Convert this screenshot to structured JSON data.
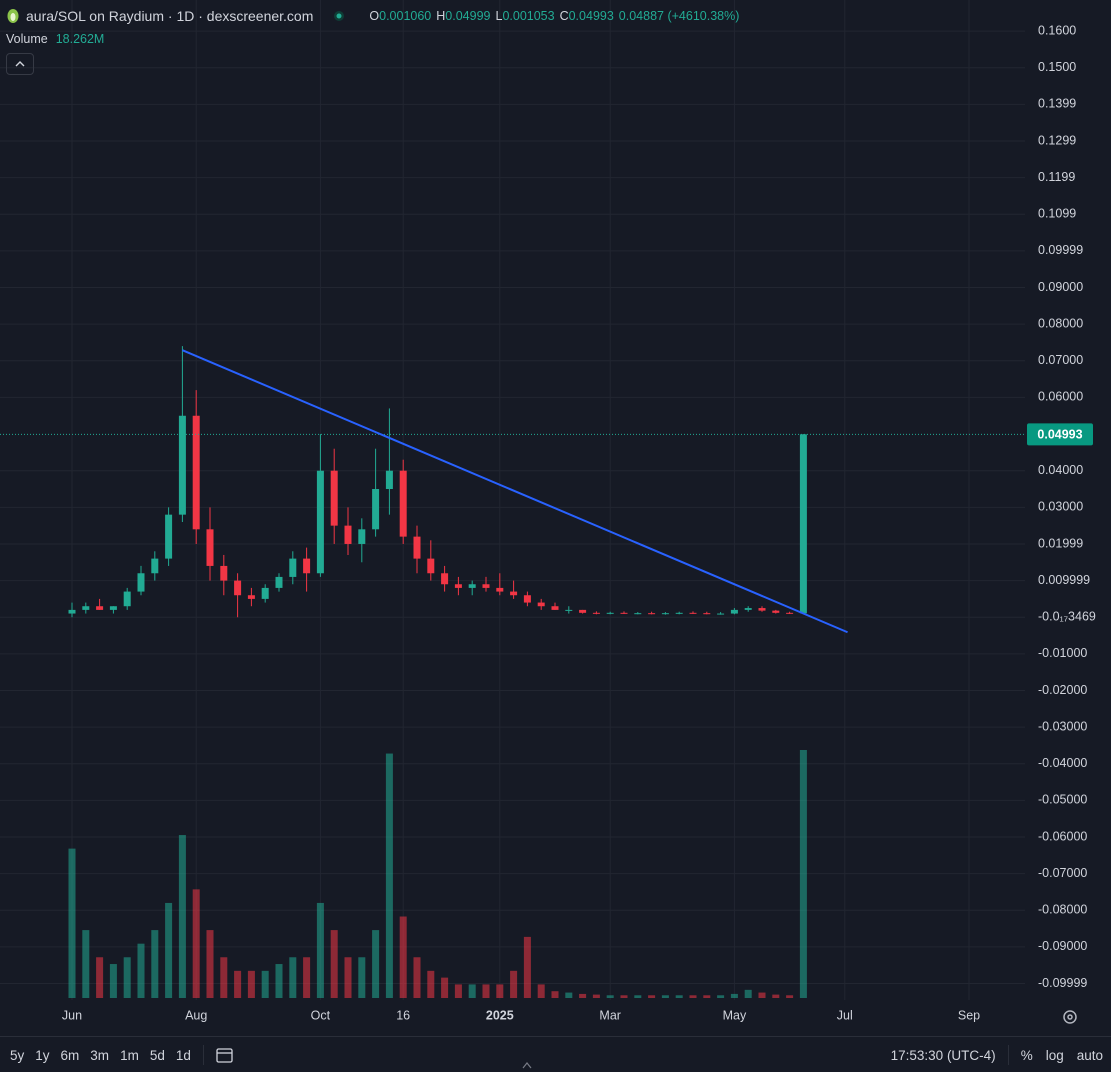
{
  "chart_data": {
    "type": "candlestick",
    "title": "aura/SOL on Raydium · 1D · dexscreener.com",
    "legend": [
      {
        "key": "O",
        "value": "0.001060"
      },
      {
        "key": "H",
        "value": "0.04999"
      },
      {
        "key": "L",
        "value": "0.001053"
      },
      {
        "key": "C",
        "value": "0.04993"
      }
    ],
    "change": "0.04887 (+4610.38%)",
    "volume_title": "Volume",
    "volume_value_label": "18.262M",
    "categories": [
      "Jun",
      null,
      null,
      null,
      null,
      null,
      null,
      null,
      null,
      "Aug",
      null,
      null,
      null,
      null,
      null,
      null,
      null,
      null,
      "Oct",
      null,
      null,
      null,
      null,
      null,
      "16",
      null,
      null,
      null,
      null,
      null,
      null,
      "2025",
      null,
      null,
      null,
      null,
      null,
      null,
      null,
      "Mar",
      null,
      null,
      null,
      null,
      null,
      null,
      null,
      null,
      "May",
      null,
      null,
      null,
      null,
      null,
      null,
      null,
      "Jul",
      null,
      null,
      null,
      null,
      null,
      null,
      null,
      null,
      "Sep",
      null,
      null,
      null
    ],
    "open": [
      0.001,
      0.002,
      0.003,
      0.002,
      0.003,
      0.007,
      0.012,
      0.016,
      0.028,
      0.055,
      0.024,
      0.014,
      0.01,
      0.006,
      0.005,
      0.008,
      0.011,
      0.016,
      0.012,
      0.04,
      0.025,
      0.02,
      0.024,
      0.035,
      0.04,
      0.022,
      0.016,
      0.012,
      0.009,
      0.008,
      0.009,
      0.008,
      0.007,
      0.006,
      0.004,
      0.003,
      0.002,
      0.002,
      0.0012,
      0.0011,
      0.0012,
      0.001,
      0.0011,
      0.001,
      0.0011,
      0.0012,
      0.0011,
      0.001,
      0.001,
      0.002,
      0.0025,
      0.0018,
      0.0012,
      0.00106,
      null,
      null,
      null,
      null,
      null,
      null,
      null,
      null,
      null,
      null,
      null,
      null,
      null,
      null,
      null
    ],
    "high": [
      0.004,
      0.004,
      0.005,
      0.003,
      0.008,
      0.014,
      0.018,
      0.03,
      0.074,
      0.062,
      0.03,
      0.017,
      0.012,
      0.008,
      0.009,
      0.012,
      0.018,
      0.019,
      0.05,
      0.046,
      0.03,
      0.027,
      0.046,
      0.057,
      0.043,
      0.025,
      0.021,
      0.014,
      0.011,
      0.01,
      0.011,
      0.012,
      0.01,
      0.007,
      0.005,
      0.004,
      0.003,
      0.002,
      0.0016,
      0.0015,
      0.0016,
      0.0014,
      0.0015,
      0.0014,
      0.0015,
      0.0016,
      0.0015,
      0.0014,
      0.0025,
      0.003,
      0.003,
      0.002,
      0.0015,
      0.04999,
      null,
      null,
      null,
      null,
      null,
      null,
      null,
      null,
      null,
      null,
      null,
      null,
      null,
      null,
      null
    ],
    "low": [
      0,
      0.001,
      0.002,
      0.001,
      0.002,
      0.006,
      0.01,
      0.014,
      0.026,
      0.02,
      0.01,
      0.006,
      0,
      0.003,
      0.004,
      0.007,
      0.009,
      0.007,
      0.011,
      0.02,
      0.017,
      0.015,
      0.022,
      0.028,
      0.02,
      0.012,
      0.01,
      0.007,
      0.006,
      0.006,
      0.007,
      0.006,
      0.005,
      0.003,
      0.002,
      0.002,
      0.001,
      0.001,
      0.0008,
      0.0008,
      0.0009,
      0.0008,
      0.0008,
      0.0007,
      0.0008,
      0.0009,
      0.0008,
      0.0007,
      0.0008,
      0.0015,
      0.0015,
      0.001,
      0.0009,
      0.001053,
      null,
      null,
      null,
      null,
      null,
      null,
      null,
      null,
      null,
      null,
      null,
      null,
      null,
      null,
      null
    ],
    "close": [
      0.002,
      0.003,
      0.002,
      0.003,
      0.007,
      0.012,
      0.016,
      0.028,
      0.055,
      0.024,
      0.014,
      0.01,
      0.006,
      0.005,
      0.008,
      0.011,
      0.016,
      0.012,
      0.04,
      0.025,
      0.02,
      0.024,
      0.035,
      0.04,
      0.022,
      0.016,
      0.012,
      0.009,
      0.008,
      0.009,
      0.008,
      0.007,
      0.006,
      0.004,
      0.003,
      0.002,
      0.002,
      0.0012,
      0.0011,
      0.0012,
      0.001,
      0.0011,
      0.001,
      0.0011,
      0.0012,
      0.0011,
      0.001,
      0.001,
      0.002,
      0.0025,
      0.0018,
      0.0012,
      0.0011,
      0.04993,
      null,
      null,
      null,
      null,
      null,
      null,
      null,
      null,
      null,
      null,
      null,
      null,
      null,
      null,
      null
    ],
    "volume": [
      11000000,
      5000000,
      3000000,
      2500000,
      3000000,
      4000000,
      5000000,
      7000000,
      12000000,
      8000000,
      5000000,
      3000000,
      2000000,
      2000000,
      2000000,
      2500000,
      3000000,
      3000000,
      7000000,
      5000000,
      3000000,
      3000000,
      5000000,
      18000000,
      6000000,
      3000000,
      2000000,
      1500000,
      1000000,
      1000000,
      1000000,
      1000000,
      2000000,
      4500000,
      1000000,
      500000,
      400000,
      300000,
      250000,
      200000,
      200000,
      200000,
      200000,
      200000,
      200000,
      200000,
      200000,
      200000,
      300000,
      600000,
      400000,
      250000,
      200000,
      18262000,
      null,
      null,
      null,
      null,
      null,
      null,
      null,
      null,
      null,
      null,
      null,
      null,
      null,
      null,
      null
    ],
    "up_color": "#22ab94",
    "down_color": "#f23645",
    "ylim": [
      -0.1045,
      0.1685
    ],
    "yticks": [
      {
        "value": 0.16,
        "label": "0.1600"
      },
      {
        "value": 0.15,
        "label": "0.1500"
      },
      {
        "value": 0.14,
        "label": "0.1399"
      },
      {
        "value": 0.13,
        "label": "0.1299"
      },
      {
        "value": 0.12,
        "label": "0.1199"
      },
      {
        "value": 0.11,
        "label": "0.1099"
      },
      {
        "value": 0.1,
        "label": "0.09999"
      },
      {
        "value": 0.09,
        "label": "0.09000"
      },
      {
        "value": 0.08,
        "label": "0.08000"
      },
      {
        "value": 0.07,
        "label": "0.07000"
      },
      {
        "value": 0.06,
        "label": "0.06000"
      },
      {
        "value": 0.04,
        "label": "0.04000"
      },
      {
        "value": 0.03,
        "label": "0.03000"
      },
      {
        "value": 0.02,
        "label": "0.01999"
      },
      {
        "value": 0.01,
        "label": "0.009999"
      },
      {
        "value": 0,
        "label": "-0.0₁₇3469"
      },
      {
        "value": -0.01,
        "label": "-0.01000"
      },
      {
        "value": -0.02,
        "label": "-0.02000"
      },
      {
        "value": -0.03,
        "label": "-0.03000"
      },
      {
        "value": -0.04,
        "label": "-0.04000"
      },
      {
        "value": -0.05,
        "label": "-0.05000"
      },
      {
        "value": -0.06,
        "label": "-0.06000"
      },
      {
        "value": -0.07,
        "label": "-0.07000"
      },
      {
        "value": -0.08,
        "label": "-0.08000"
      },
      {
        "value": -0.09,
        "label": "-0.09000"
      },
      {
        "value": -0.1,
        "label": "-0.09999"
      }
    ],
    "grid": true,
    "last_price": {
      "value": 0.04993,
      "label": "0.04993"
    },
    "trendline": {
      "color": "#2962ff",
      "start": {
        "x": 8,
        "y": 0.0729
      },
      "end": {
        "x": 56.2,
        "y": -0.0041
      }
    }
  },
  "ui": {
    "ranges": [
      "5y",
      "1y",
      "6m",
      "3m",
      "1m",
      "5d",
      "1d"
    ],
    "clock": "17:53:30 (UTC-4)",
    "options": [
      "%",
      "log",
      "auto"
    ]
  }
}
